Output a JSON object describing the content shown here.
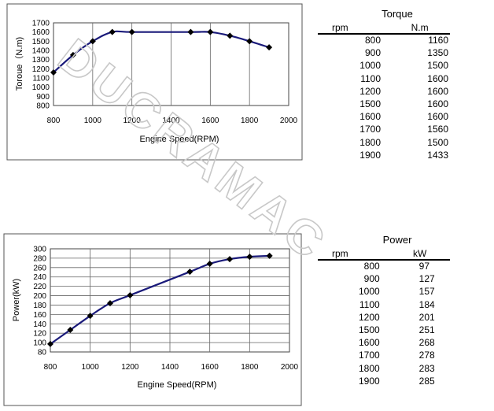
{
  "watermark": "DUCRAMAC",
  "chart_data": [
    {
      "type": "line",
      "xlabel": "Engine Speed(RPM)",
      "ylabel": "Toroue（N.m)",
      "xlim": [
        800,
        2000
      ],
      "ylim": [
        800,
        1700
      ],
      "xticks": [
        "800",
        "1000",
        "1200",
        "1400",
        "1600",
        "1800",
        "2000"
      ],
      "yticks": [
        "800",
        "900",
        "1000",
        "1100",
        "1200",
        "1300",
        "1400",
        "1500",
        "1600",
        "1700"
      ],
      "grid": "vertical",
      "series": [
        {
          "x": [
            800,
            900,
            1000,
            1100,
            1200,
            1500,
            1600,
            1700,
            1800,
            1900
          ],
          "values": [
            1160,
            1350,
            1500,
            1600,
            1600,
            1600,
            1600,
            1560,
            1500,
            1433
          ]
        }
      ]
    },
    {
      "type": "line",
      "xlabel": "Engine Speed(RPM)",
      "ylabel": "Power(kW)",
      "xlim": [
        800,
        2000
      ],
      "ylim": [
        80,
        300
      ],
      "xticks": [
        "800",
        "1000",
        "1200",
        "1400",
        "1600",
        "1800",
        "2000"
      ],
      "yticks": [
        "80",
        "100",
        "120",
        "140",
        "160",
        "180",
        "200",
        "220",
        "240",
        "260",
        "280",
        "300"
      ],
      "grid": "both",
      "series": [
        {
          "x": [
            800,
            900,
            1000,
            1100,
            1200,
            1500,
            1600,
            1700,
            1800,
            1900
          ],
          "values": [
            97,
            127,
            157,
            184,
            201,
            251,
            268,
            278,
            283,
            285
          ]
        }
      ]
    }
  ],
  "tables": {
    "torque": {
      "title": "Torque",
      "col1": "rpm",
      "col2": "N.m",
      "rows": [
        [
          "800",
          "1160"
        ],
        [
          "900",
          "1350"
        ],
        [
          "1000",
          "1500"
        ],
        [
          "1100",
          "1600"
        ],
        [
          "1200",
          "1600"
        ],
        [
          "1500",
          "1600"
        ],
        [
          "1600",
          "1600"
        ],
        [
          "1700",
          "1560"
        ],
        [
          "1800",
          "1500"
        ],
        [
          "1900",
          "1433"
        ]
      ]
    },
    "power": {
      "title": "Power",
      "col1": "rpm",
      "col2": "kW",
      "rows": [
        [
          "800",
          "97"
        ],
        [
          "900",
          "127"
        ],
        [
          "1000",
          "157"
        ],
        [
          "1100",
          "184"
        ],
        [
          "1200",
          "201"
        ],
        [
          "1500",
          "251"
        ],
        [
          "1600",
          "268"
        ],
        [
          "1700",
          "278"
        ],
        [
          "1800",
          "283"
        ],
        [
          "1900",
          "285"
        ]
      ]
    }
  }
}
